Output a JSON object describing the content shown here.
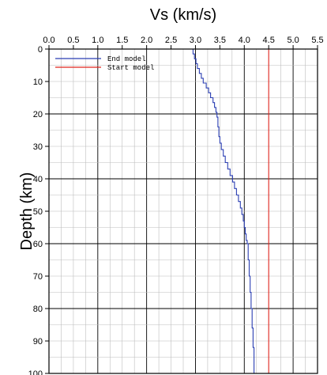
{
  "chart_data": {
    "type": "line",
    "xlabel": "Vs (km/s)",
    "ylabel": "Depth (km)",
    "xlim": [
      0.0,
      5.5
    ],
    "ylim": [
      0,
      100
    ],
    "y_inverted": true,
    "x_axis_position": "top",
    "x_ticks": [
      "0.0",
      "0.5",
      "1.0",
      "1.5",
      "2.0",
      "2.5",
      "3.0",
      "3.5",
      "4.0",
      "4.5",
      "5.0",
      "5.5"
    ],
    "y_ticks": [
      "0",
      "10",
      "20",
      "30",
      "40",
      "50",
      "60",
      "70",
      "80",
      "90",
      "100"
    ],
    "grid": true,
    "legend_position": "top-left",
    "series": [
      {
        "name": "End model",
        "color": "#2b3fb3",
        "step": true,
        "points": [
          [
            2.95,
            0
          ],
          [
            2.95,
            1.5
          ],
          [
            2.98,
            1.5
          ],
          [
            2.98,
            3
          ],
          [
            3.01,
            3
          ],
          [
            3.01,
            4.5
          ],
          [
            3.04,
            4.5
          ],
          [
            3.04,
            6
          ],
          [
            3.08,
            6
          ],
          [
            3.08,
            7.5
          ],
          [
            3.12,
            7.5
          ],
          [
            3.12,
            9
          ],
          [
            3.16,
            9
          ],
          [
            3.16,
            10.5
          ],
          [
            3.22,
            10.5
          ],
          [
            3.22,
            12
          ],
          [
            3.27,
            12
          ],
          [
            3.27,
            13.5
          ],
          [
            3.31,
            13.5
          ],
          [
            3.31,
            15
          ],
          [
            3.36,
            15
          ],
          [
            3.36,
            16.5
          ],
          [
            3.39,
            16.5
          ],
          [
            3.39,
            18
          ],
          [
            3.42,
            18
          ],
          [
            3.42,
            19.5
          ],
          [
            3.44,
            19.5
          ],
          [
            3.44,
            21
          ],
          [
            3.46,
            21
          ],
          [
            3.46,
            24
          ],
          [
            3.48,
            24
          ],
          [
            3.48,
            27
          ],
          [
            3.5,
            27
          ],
          [
            3.5,
            29
          ],
          [
            3.53,
            29
          ],
          [
            3.53,
            31
          ],
          [
            3.57,
            31
          ],
          [
            3.57,
            33
          ],
          [
            3.61,
            33
          ],
          [
            3.61,
            35
          ],
          [
            3.66,
            35
          ],
          [
            3.66,
            37
          ],
          [
            3.71,
            37
          ],
          [
            3.71,
            39
          ],
          [
            3.76,
            39
          ],
          [
            3.76,
            41
          ],
          [
            3.8,
            41
          ],
          [
            3.8,
            43
          ],
          [
            3.84,
            43
          ],
          [
            3.84,
            45
          ],
          [
            3.88,
            45
          ],
          [
            3.88,
            47
          ],
          [
            3.92,
            47
          ],
          [
            3.92,
            49
          ],
          [
            3.95,
            49
          ],
          [
            3.95,
            51
          ],
          [
            3.98,
            51
          ],
          [
            3.98,
            53
          ],
          [
            4.0,
            53
          ],
          [
            4.0,
            55
          ],
          [
            4.02,
            55
          ],
          [
            4.02,
            57
          ],
          [
            4.04,
            57
          ],
          [
            4.04,
            59
          ],
          [
            4.06,
            59
          ],
          [
            4.06,
            60
          ],
          [
            4.08,
            60
          ],
          [
            4.08,
            65
          ],
          [
            4.1,
            65
          ],
          [
            4.1,
            70
          ],
          [
            4.12,
            70
          ],
          [
            4.12,
            75
          ],
          [
            4.14,
            75
          ],
          [
            4.14,
            80
          ],
          [
            4.16,
            80
          ],
          [
            4.16,
            86
          ],
          [
            4.18,
            86
          ],
          [
            4.18,
            92
          ],
          [
            4.2,
            92
          ],
          [
            4.2,
            100
          ]
        ]
      },
      {
        "name": "Start model",
        "color": "#e0261f",
        "step": false,
        "points": [
          [
            4.5,
            0
          ],
          [
            4.5,
            100
          ]
        ]
      }
    ]
  },
  "legend": {
    "items": [
      {
        "label": "End model",
        "color": "#2b3fb3"
      },
      {
        "label": "Start model",
        "color": "#e0261f"
      }
    ]
  }
}
